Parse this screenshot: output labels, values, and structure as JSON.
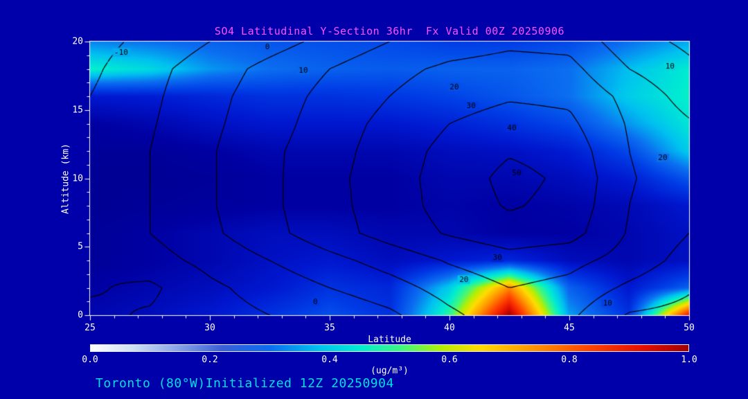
{
  "colors": {
    "background": "#0000aa",
    "title": "#ff50ff",
    "axis_text": "#ffffff",
    "annotation": "#00e0e0",
    "contour_line": "#000000",
    "frame": "#ffffff"
  },
  "chart_data": {
    "type": "heatmap",
    "title": "SO4 Latitudinal Y-Section 36hr  Fx Valid 00Z 20250906",
    "xlabel": "Latitude",
    "ylabel": "Altitude (km)",
    "annotation": "Toronto (80°W)Initialized 12Z 20250904",
    "x_range": [
      25,
      50
    ],
    "y_range": [
      0,
      20
    ],
    "x_ticks": [
      25,
      30,
      35,
      40,
      45,
      50
    ],
    "y_ticks": [
      0,
      5,
      10,
      15,
      20
    ],
    "colorbar": {
      "units": "(ug/m³)",
      "min": 0.0,
      "max": 1.0,
      "tick_labels": [
        "0.0",
        "0.2",
        "0.4",
        "0.6",
        "0.8",
        "1.0"
      ],
      "stops": [
        [
          0,
          "#ffffff"
        ],
        [
          0.07,
          "#cfe0f4"
        ],
        [
          0.14,
          "#8fa8e8"
        ],
        [
          0.22,
          "#3a5fd8"
        ],
        [
          0.3,
          "#0b6ef0"
        ],
        [
          0.38,
          "#00c0f0"
        ],
        [
          0.45,
          "#00ecd2"
        ],
        [
          0.52,
          "#3ef87e"
        ],
        [
          0.59,
          "#b8ee00"
        ],
        [
          0.65,
          "#ffdc00"
        ],
        [
          0.74,
          "#ff9400"
        ],
        [
          0.83,
          "#ff4600"
        ],
        [
          0.92,
          "#e61000"
        ],
        [
          1,
          "#a00000"
        ]
      ]
    },
    "fill_colormap": [
      [
        0,
        "#00007d"
      ],
      [
        0.08,
        "#0000a2"
      ],
      [
        0.15,
        "#0017cf"
      ],
      [
        0.22,
        "#003ce6"
      ],
      [
        0.3,
        "#0b6ef0"
      ],
      [
        0.38,
        "#00c0f0"
      ],
      [
        0.45,
        "#00ecd2"
      ],
      [
        0.52,
        "#3ef87e"
      ],
      [
        0.59,
        "#b8ee00"
      ],
      [
        0.65,
        "#ffdc00"
      ],
      [
        0.74,
        "#ff9400"
      ],
      [
        0.83,
        "#ff4600"
      ],
      [
        0.92,
        "#e61000"
      ],
      [
        1,
        "#a00000"
      ]
    ],
    "fill_grid": {
      "lat": [
        25,
        27.5,
        30,
        32.5,
        35,
        37.5,
        40,
        42.5,
        45,
        47.5,
        50
      ],
      "alt": [
        20,
        18,
        16,
        14,
        12,
        10,
        8,
        6,
        4,
        2,
        0
      ],
      "values": [
        [
          0.32,
          0.3,
          0.28,
          0.26,
          0.25,
          0.24,
          0.22,
          0.22,
          0.24,
          0.3,
          0.36
        ],
        [
          0.46,
          0.42,
          0.34,
          0.3,
          0.28,
          0.27,
          0.28,
          0.28,
          0.3,
          0.38,
          0.45
        ],
        [
          0.15,
          0.16,
          0.18,
          0.2,
          0.2,
          0.21,
          0.23,
          0.26,
          0.3,
          0.4,
          0.46
        ],
        [
          0.08,
          0.1,
          0.13,
          0.15,
          0.15,
          0.15,
          0.17,
          0.2,
          0.24,
          0.34,
          0.44
        ],
        [
          0.06,
          0.06,
          0.08,
          0.1,
          0.1,
          0.1,
          0.12,
          0.13,
          0.16,
          0.24,
          0.4
        ],
        [
          0.05,
          0.05,
          0.06,
          0.08,
          0.08,
          0.08,
          0.1,
          0.1,
          0.12,
          0.16,
          0.26
        ],
        [
          0.05,
          0.06,
          0.07,
          0.08,
          0.08,
          0.08,
          0.09,
          0.08,
          0.09,
          0.11,
          0.15
        ],
        [
          0.06,
          0.08,
          0.1,
          0.12,
          0.12,
          0.1,
          0.1,
          0.08,
          0.08,
          0.1,
          0.13
        ],
        [
          0.06,
          0.08,
          0.1,
          0.13,
          0.15,
          0.12,
          0.15,
          0.18,
          0.12,
          0.1,
          0.13
        ],
        [
          0.08,
          0.1,
          0.12,
          0.15,
          0.2,
          0.18,
          0.4,
          0.75,
          0.28,
          0.15,
          0.28
        ],
        [
          0.1,
          0.12,
          0.15,
          0.2,
          0.25,
          0.2,
          0.5,
          1.0,
          0.35,
          0.2,
          0.9
        ]
      ]
    },
    "line_contours": {
      "levels": [
        -10,
        0,
        10,
        20,
        30,
        40,
        50
      ],
      "values": [
        [
          -14,
          -7,
          0,
          6,
          13,
          20,
          25,
          28,
          27,
          14,
          8
        ],
        [
          -12,
          -3,
          5,
          13,
          20,
          27,
          32,
          34,
          33,
          20,
          12
        ],
        [
          -10,
          -2,
          7,
          15,
          23,
          30,
          36,
          39,
          38,
          27,
          16
        ],
        [
          -9,
          -1,
          8,
          16,
          25,
          33,
          40,
          44,
          42,
          29,
          21
        ],
        [
          -9,
          0,
          9,
          18,
          26,
          35,
          43,
          49,
          46,
          30,
          22
        ],
        [
          -8,
          0,
          9,
          18,
          27,
          36,
          44,
          53,
          48,
          31,
          23
        ],
        [
          -8,
          0,
          9,
          18,
          27,
          35,
          44,
          51,
          47,
          30,
          22
        ],
        [
          -9,
          0,
          8,
          17,
          26,
          34,
          41,
          46,
          44,
          29,
          20
        ],
        [
          -10,
          -4,
          3,
          10,
          17,
          24,
          31,
          36,
          33,
          26,
          16
        ],
        [
          -9,
          -12,
          -2,
          4,
          10,
          16,
          24,
          30,
          27,
          18,
          11
        ],
        [
          -12,
          -9,
          -4,
          0,
          2,
          8,
          18,
          26,
          22,
          9,
          7
        ]
      ]
    },
    "contour_labels": [
      {
        "v": -10,
        "lat": 26.3,
        "alt": 19.2
      },
      {
        "v": 0,
        "lat": 32.4,
        "alt": 19.6
      },
      {
        "v": 10,
        "lat": 33.9,
        "alt": 17.9
      },
      {
        "v": 20,
        "lat": 40.2,
        "alt": 16.7
      },
      {
        "v": 30,
        "lat": 40.9,
        "alt": 15.3
      },
      {
        "v": 40,
        "lat": 42.6,
        "alt": 13.7
      },
      {
        "v": 50,
        "lat": 42.8,
        "alt": 10.4
      },
      {
        "v": 10,
        "lat": 49.2,
        "alt": 18.2
      },
      {
        "v": 20,
        "lat": 48.9,
        "alt": 11.5
      },
      {
        "v": 30,
        "lat": 42.0,
        "alt": 4.2
      },
      {
        "v": 20,
        "lat": 40.6,
        "alt": 2.6
      },
      {
        "v": 10,
        "lat": 46.6,
        "alt": 0.9
      },
      {
        "v": 0,
        "lat": 34.4,
        "alt": 1.0
      }
    ]
  }
}
